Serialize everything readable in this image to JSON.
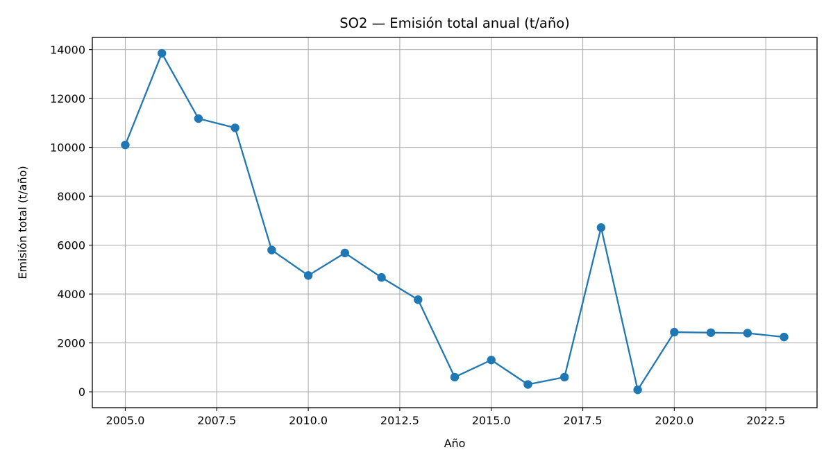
{
  "chart_data": {
    "type": "line",
    "title": "SO2 — Emisión total anual (t/año)",
    "xlabel": "Año",
    "ylabel": "Emisión total (t/año)",
    "xlim": [
      2004.1,
      2023.9
    ],
    "ylim": [
      -650,
      14500
    ],
    "xticks": [
      2005,
      2007.5,
      2010,
      2012.5,
      2015,
      2017.5,
      2020,
      2022.5
    ],
    "xtick_labels": [
      "2005.0",
      "2007.5",
      "2010.0",
      "2012.5",
      "2015.0",
      "2017.5",
      "2020.0",
      "2022.5"
    ],
    "yticks": [
      0,
      2000,
      4000,
      6000,
      8000,
      10000,
      12000,
      14000
    ],
    "ytick_labels": [
      "0",
      "2000",
      "4000",
      "6000",
      "8000",
      "10000",
      "12000",
      "14000"
    ],
    "grid": true,
    "color": "#1f77b4",
    "marker": "circle",
    "x": [
      2005,
      2006,
      2007,
      2008,
      2009,
      2010,
      2011,
      2012,
      2013,
      2014,
      2015,
      2016,
      2017,
      2018,
      2019,
      2020,
      2021,
      2022,
      2023
    ],
    "y": [
      10100,
      13850,
      11180,
      10800,
      5800,
      4760,
      5680,
      4680,
      3770,
      600,
      1300,
      300,
      600,
      6720,
      80,
      2440,
      2420,
      2400,
      2240
    ]
  }
}
